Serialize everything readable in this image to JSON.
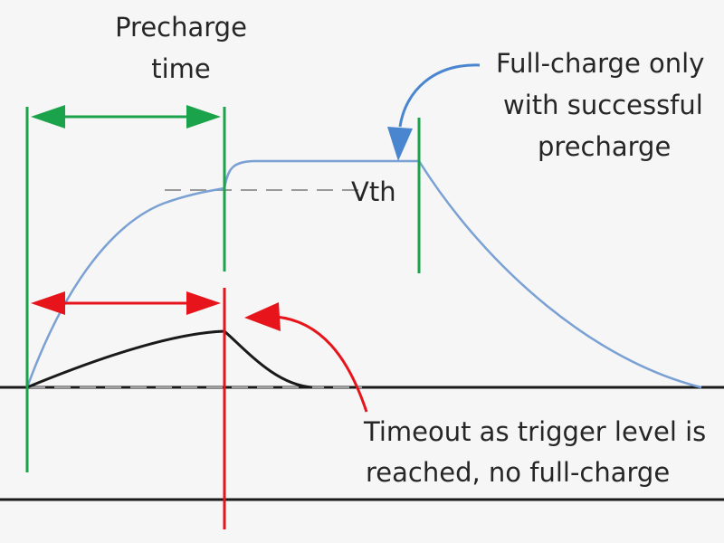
{
  "labels": {
    "precharge_line1": "Precharge",
    "precharge_line2": "time",
    "fullcharge_line1": "Full-charge only",
    "fullcharge_line2": "with successful",
    "fullcharge_line3": "precharge",
    "vth": "Vth",
    "timeout_line1": "Timeout as trigger level is",
    "timeout_line2": "reached, no full-charge"
  },
  "colors": {
    "green": "#1aa34a",
    "red": "#e8141b",
    "blue_curve": "#7aa0d4",
    "blue_arrow": "#4a86d0",
    "black": "#1a1a1a",
    "dash": "#9a9a9a",
    "background": "#f5f6f5"
  }
}
